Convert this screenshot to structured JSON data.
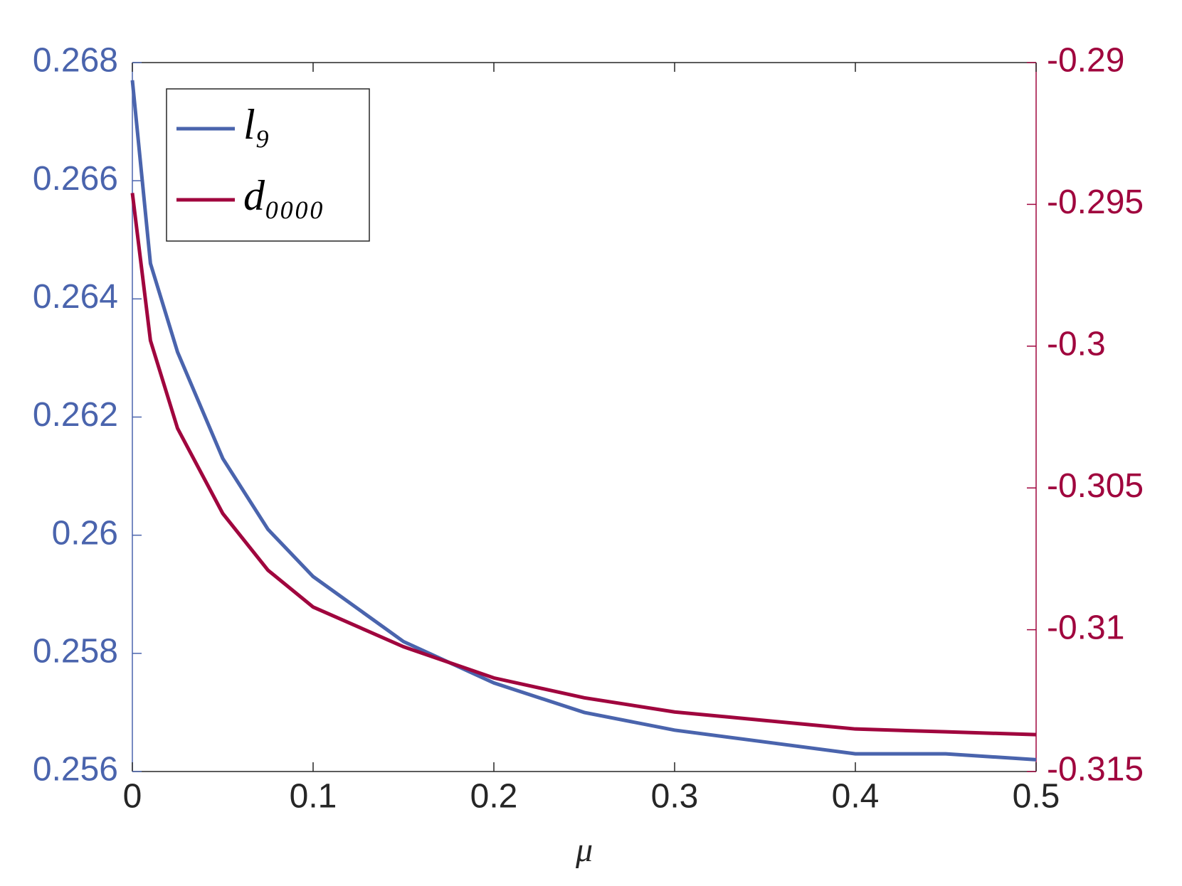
{
  "chart_data": {
    "type": "line",
    "xlabel": "μ",
    "x": [
      0,
      0.01,
      0.025,
      0.05,
      0.075,
      0.1,
      0.15,
      0.2,
      0.25,
      0.3,
      0.35,
      0.4,
      0.45,
      0.5
    ],
    "series": [
      {
        "name": "l₉",
        "color": "#4a64ad",
        "axis": "y",
        "values": [
          0.2677,
          0.2646,
          0.2631,
          0.2613,
          0.2601,
          0.2593,
          0.2582,
          0.2575,
          0.257,
          0.2567,
          0.2565,
          0.2563,
          0.2563,
          0.2562
        ]
      },
      {
        "name": "d₀₀₀₀",
        "color": "#a0063e",
        "axis": "y2",
        "values": [
          -0.2946,
          -0.2998,
          -0.3029,
          -0.3059,
          -0.3079,
          -0.3092,
          -0.3106,
          -0.3117,
          -0.3124,
          -0.3129,
          -0.3132,
          -0.3135,
          -0.3136,
          -0.3137
        ]
      }
    ],
    "xlim": [
      0,
      0.5
    ],
    "xticks": [
      0,
      0.1,
      0.2,
      0.3,
      0.4,
      0.5
    ],
    "ylim": [
      0.256,
      0.268
    ],
    "yticks": [
      0.256,
      0.258,
      0.26,
      0.262,
      0.264,
      0.266,
      0.268
    ],
    "y2lim": [
      -0.315,
      -0.29
    ],
    "y2ticks": [
      -0.315,
      -0.31,
      -0.305,
      -0.3,
      -0.295,
      -0.29
    ],
    "legend": "upper left",
    "grid": false
  }
}
